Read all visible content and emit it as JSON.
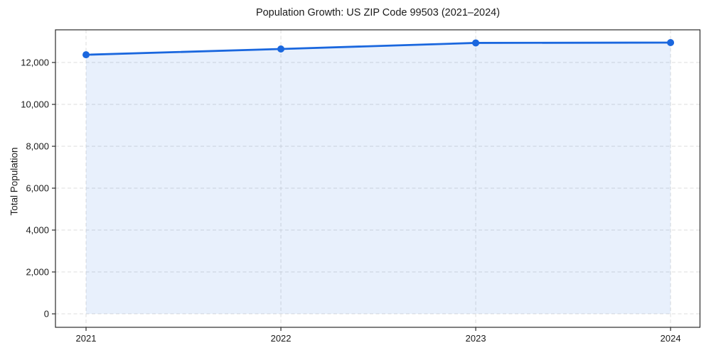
{
  "chart_data": {
    "type": "line",
    "title": "Population Growth: US ZIP Code 99503 (2021–2024)",
    "xlabel": "",
    "ylabel": "Total Population",
    "x": [
      2021,
      2022,
      2023,
      2024
    ],
    "series": [
      {
        "name": "Total Population",
        "values": [
          12370,
          12645,
          12935,
          12950
        ],
        "line_color": "#1a67de",
        "marker": "circle",
        "fill_below_to_zero": true,
        "fill_opacity": 0.1
      }
    ],
    "xticks": [
      "2021",
      "2022",
      "2023",
      "2024"
    ],
    "yticks": [
      0,
      2000,
      4000,
      6000,
      8000,
      10000,
      12000
    ],
    "ytick_labels": [
      "0",
      "2,000",
      "4,000",
      "6,000",
      "8,000",
      "10,000",
      "12,000"
    ],
    "xlim": [
      2020.843,
      2024.151
    ],
    "ylim": [
      -643,
      13560
    ],
    "grid": "dashed",
    "grid_color": "#dcdcdc",
    "spine_color": "#2b2b2b",
    "tick_color": "#2b2b2b",
    "background": "#ffffff",
    "legend": "none"
  }
}
